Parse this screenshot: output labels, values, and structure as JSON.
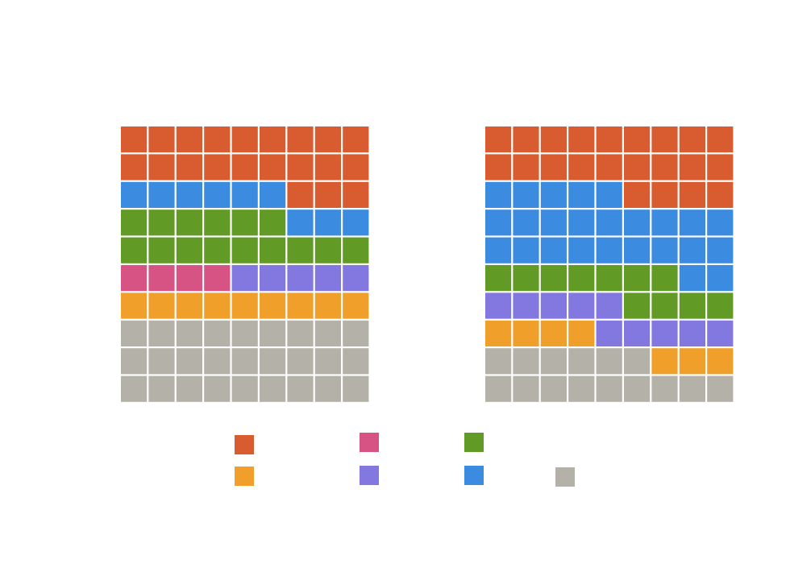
{
  "chart_data": {
    "type": "waffle",
    "series": [
      {
        "color": "#b3b1a8",
        "values": [
          27,
          15
        ]
      },
      {
        "color": "#f0a02a",
        "values": [
          9,
          7
        ]
      },
      {
        "color": "#d65383",
        "values": [
          4,
          0
        ]
      },
      {
        "color": "#8378e0",
        "values": [
          5,
          10
        ]
      },
      {
        "color": "#629a26",
        "values": [
          15,
          11
        ]
      },
      {
        "color": "#3b8ce0",
        "values": [
          9,
          25
        ]
      },
      {
        "color": "#d95b30",
        "values": [
          21,
          22
        ]
      }
    ]
  }
}
